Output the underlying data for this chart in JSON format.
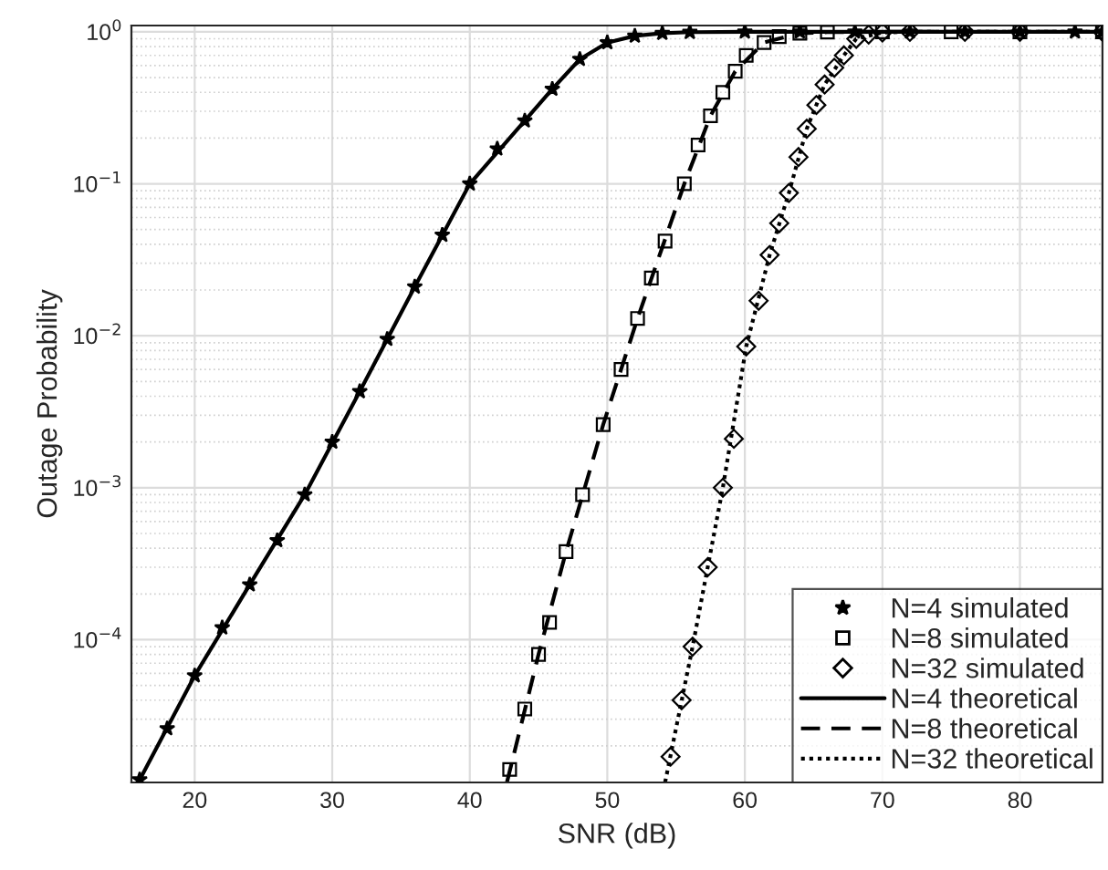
{
  "chart_data": {
    "type": "line",
    "xlabel": "SNR (dB)",
    "ylabel": "Outage Probability",
    "xlim": [
      15.4,
      86
    ],
    "xticks": [
      20,
      30,
      40,
      50,
      60,
      70,
      80
    ],
    "ylim": [
      1.15e-05,
      1.1
    ],
    "log": "y",
    "yticks": [
      {
        "value": 0.0001,
        "label": "10$^{−4}$"
      },
      {
        "value": 0.001,
        "label": "10$^{−3}$"
      },
      {
        "value": 0.01,
        "label": "10$^{−2}$"
      },
      {
        "value": 0.1,
        "label": "10$^{−1}$"
      },
      {
        "value": 1,
        "label": "10$^{0}$"
      }
    ],
    "grid": true,
    "legend": "bottom right",
    "series": [
      {
        "name": "N=4 simulated",
        "type": "scatter",
        "marker": "star",
        "color": "#000000",
        "x": [
          16,
          18,
          20,
          22,
          24,
          26,
          28,
          30,
          32,
          34,
          36,
          38,
          40,
          42,
          44,
          46,
          48,
          50,
          52,
          54,
          56,
          60,
          64,
          68,
          72,
          76,
          80,
          84,
          86
        ],
        "values": [
          1.2e-05,
          2.6e-05,
          5.8e-05,
          0.00012,
          0.00023,
          0.00045,
          0.0009,
          0.002,
          0.0043,
          0.0095,
          0.021,
          0.046,
          0.1,
          0.17,
          0.26,
          0.42,
          0.66,
          0.85,
          0.94,
          0.98,
          0.995,
          1,
          1,
          1,
          1,
          1,
          1,
          1,
          1
        ]
      },
      {
        "name": "N=8 simulated",
        "type": "scatter",
        "marker": "square",
        "color": "#000000",
        "x": [
          42.9,
          44,
          45,
          45.8,
          47,
          48.2,
          49.7,
          51,
          52.2,
          53.2,
          54.2,
          55.6,
          56.6,
          57.5,
          58.4,
          59.3,
          60.1,
          61.4,
          62.5,
          64,
          66,
          70,
          75,
          80,
          86
        ],
        "values": [
          1.4e-05,
          3.5e-05,
          8e-05,
          0.00013,
          0.00038,
          0.0009,
          0.0026,
          0.006,
          0.013,
          0.024,
          0.042,
          0.1,
          0.18,
          0.28,
          0.4,
          0.55,
          0.7,
          0.85,
          0.93,
          0.98,
          0.995,
          1,
          1,
          1,
          1
        ]
      },
      {
        "name": "N=32 simulated",
        "type": "scatter",
        "marker": "diamond",
        "color": "#000000",
        "x": [
          54.6,
          55.4,
          56.2,
          57.3,
          58.4,
          59.2,
          60.1,
          61,
          61.8,
          62.5,
          63.2,
          63.9,
          64.5,
          65.2,
          65.8,
          66.5,
          67.2,
          68.1,
          69,
          70,
          72,
          76,
          80,
          86
        ],
        "values": [
          1.7e-05,
          4e-05,
          9e-05,
          0.0003,
          0.001,
          0.0021,
          0.0085,
          0.017,
          0.034,
          0.055,
          0.087,
          0.15,
          0.23,
          0.33,
          0.45,
          0.58,
          0.7,
          0.9,
          0.96,
          0.99,
          1,
          1,
          1,
          1
        ]
      },
      {
        "name": "N=4 theoretical",
        "line_style": "solid",
        "marker": "none",
        "color": "#000000",
        "x": [
          15.9,
          20,
          24,
          28,
          32,
          36,
          40,
          44,
          46,
          48,
          50,
          52,
          54,
          56,
          60,
          86
        ],
        "values": [
          1.15e-05,
          5.8e-05,
          0.00023,
          0.0009,
          0.0043,
          0.021,
          0.1,
          0.26,
          0.42,
          0.66,
          0.85,
          0.94,
          0.98,
          0.995,
          1,
          1
        ]
      },
      {
        "name": "N=8 theoretical",
        "line_style": "dashed",
        "marker": "none",
        "color": "#000000",
        "x": [
          42.7,
          45,
          47,
          49.7,
          52.2,
          55.6,
          57.5,
          59.3,
          61.4,
          64,
          66,
          70,
          86
        ],
        "values": [
          1.15e-05,
          8e-05,
          0.00038,
          0.0026,
          0.013,
          0.1,
          0.28,
          0.55,
          0.85,
          0.98,
          0.995,
          1,
          1
        ]
      },
      {
        "name": "N=32 theoretical",
        "line_style": "dotted",
        "marker": "none",
        "color": "#000000",
        "x": [
          54.2,
          56.2,
          58.4,
          60.1,
          61.8,
          63.2,
          64.5,
          65.8,
          67.2,
          68.1,
          70,
          72,
          86
        ],
        "values": [
          1.15e-05,
          9e-05,
          0.001,
          0.0085,
          0.034,
          0.087,
          0.23,
          0.45,
          0.7,
          0.9,
          0.99,
          1,
          1
        ]
      }
    ]
  }
}
